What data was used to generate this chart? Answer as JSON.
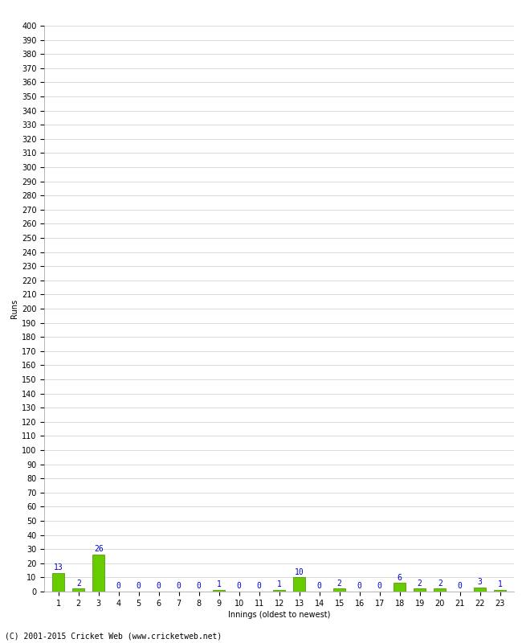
{
  "innings": [
    1,
    2,
    3,
    4,
    5,
    6,
    7,
    8,
    9,
    10,
    11,
    12,
    13,
    14,
    15,
    16,
    17,
    18,
    19,
    20,
    21,
    22,
    23
  ],
  "runs": [
    13,
    2,
    26,
    0,
    0,
    0,
    0,
    0,
    1,
    0,
    0,
    1,
    10,
    0,
    2,
    0,
    0,
    6,
    2,
    2,
    0,
    3,
    1
  ],
  "bar_color": "#66cc00",
  "bar_edge_color": "#448800",
  "label_color": "#0000cc",
  "grid_color": "#cccccc",
  "bg_color": "#ffffff",
  "ylabel": "Runs",
  "xlabel": "Innings (oldest to newest)",
  "footer": "(C) 2001-2015 Cricket Web (www.cricketweb.net)",
  "ylim": [
    0,
    400
  ],
  "ytick_step": 10,
  "label_fontsize": 7,
  "tick_fontsize": 7,
  "axis_label_fontsize": 7,
  "footer_fontsize": 7
}
